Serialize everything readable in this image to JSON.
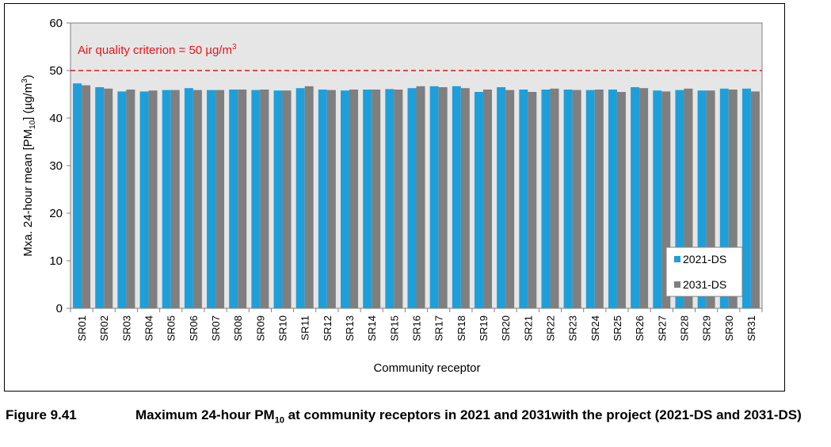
{
  "chart_data": {
    "type": "bar",
    "title": "",
    "ylabel_prefix": "Mxa. 24-hour mean [PM",
    "ylabel_sub": "10",
    "ylabel_mid": "] (µg/m",
    "ylabel_sup": "3",
    "ylabel_suffix": ")",
    "xlabel": "Community receptor",
    "ylim": [
      0,
      60
    ],
    "yticks": [
      "0",
      "10",
      "20",
      "30",
      "40",
      "50",
      "60"
    ],
    "categories": [
      "SR01",
      "SR02",
      "SR03",
      "SR04",
      "SR05",
      "SR06",
      "SR07",
      "SR08",
      "SR09",
      "SR10",
      "SR11",
      "SR12",
      "SR13",
      "SR14",
      "SR15",
      "SR16",
      "SR17",
      "SR18",
      "SR19",
      "SR20",
      "SR21",
      "SR22",
      "SR23",
      "SR24",
      "SR25",
      "SR26",
      "SR27",
      "SR28",
      "SR29",
      "SR30",
      "SR31"
    ],
    "series": [
      {
        "name": "2021-DS",
        "color": "#1f9fd9",
        "values": [
          47.3,
          46.5,
          45.6,
          45.6,
          45.9,
          46.3,
          45.9,
          46.0,
          45.9,
          45.8,
          46.3,
          46.0,
          45.8,
          46.0,
          46.1,
          46.3,
          46.7,
          46.7,
          45.5,
          46.5,
          46.0,
          46.0,
          46.0,
          45.9,
          46.0,
          46.5,
          45.8,
          45.9,
          45.8,
          46.2,
          46.2
        ]
      },
      {
        "name": "2031-DS",
        "color": "#7f7f7f",
        "values": [
          46.9,
          46.2,
          46.0,
          45.8,
          45.9,
          45.9,
          45.9,
          46.0,
          46.0,
          45.8,
          46.7,
          45.9,
          46.0,
          46.0,
          46.0,
          46.7,
          46.5,
          46.3,
          46.0,
          45.9,
          45.5,
          46.2,
          45.9,
          46.0,
          45.5,
          46.3,
          45.6,
          46.2,
          45.8,
          46.0,
          45.6
        ]
      }
    ],
    "criterion": {
      "value": 50,
      "label_text": "Air quality criterion = 50 µg/m",
      "label_sup": "3",
      "color": "#e8141b"
    },
    "grid": false,
    "legend_position": "bottom-right",
    "plot_background": "#e6e6e6"
  },
  "caption": {
    "label": "Figure 9.41",
    "text_prefix": "Maximum 24-hour PM",
    "text_sub": "10",
    "text_suffix": " at community receptors in 2021 and 2031with the project (2021-DS and 2031-DS)"
  }
}
